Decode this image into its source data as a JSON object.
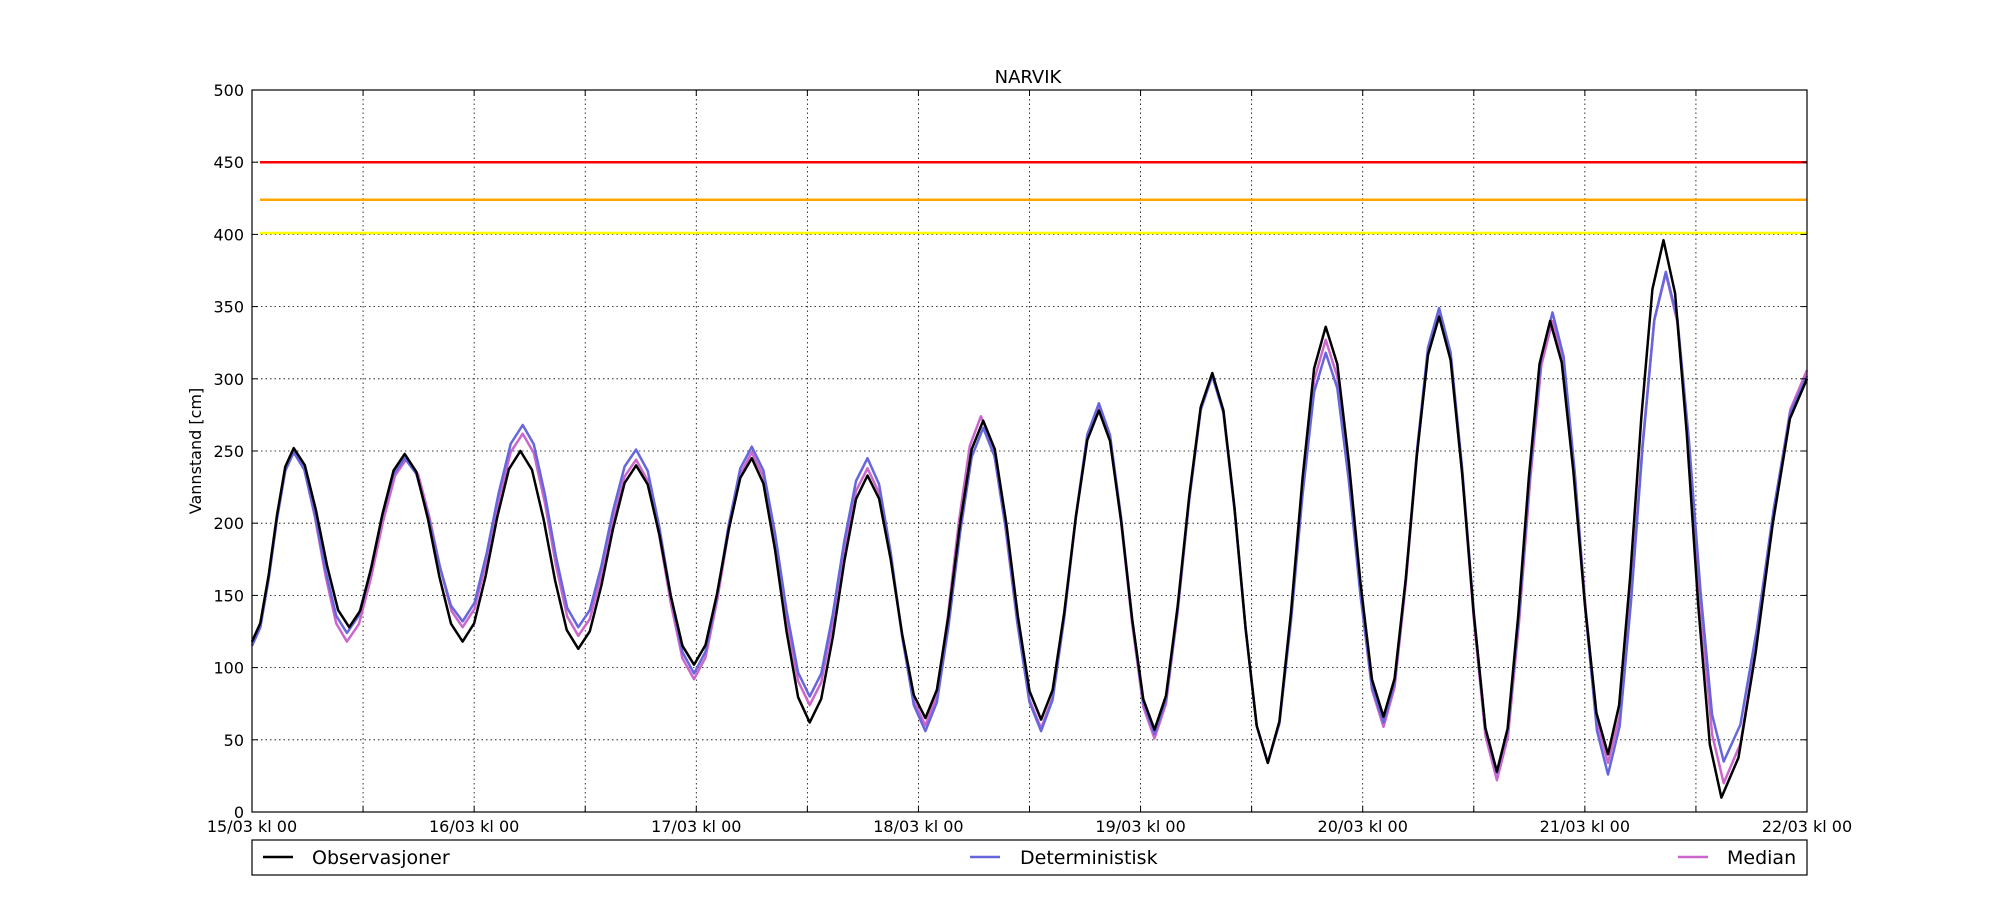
{
  "chart_data": {
    "type": "line",
    "title": "NARVIK",
    "ylabel": "Vannstand [cm]",
    "xlabel": "",
    "ylim": [
      0,
      500
    ],
    "xlim": [
      "15/03 kl 00",
      "22/03 kl 00"
    ],
    "y_ticks": [
      "0",
      "50",
      "100",
      "150",
      "200",
      "250",
      "300",
      "350",
      "400",
      "450",
      "500"
    ],
    "x_tick_labels": [
      "15/03 kl 00",
      "16/03 kl 00",
      "17/03 kl 00",
      "18/03 kl 00",
      "19/03 kl 00",
      "20/03 kl 00",
      "21/03 kl 00",
      "22/03 kl 00"
    ],
    "grid": true,
    "legend_placement": "bottom",
    "thresholds": [
      {
        "value": 450,
        "color": "#ff0000"
      },
      {
        "value": 424,
        "color": "#ffa500"
      },
      {
        "value": 401,
        "color": "#ffff00"
      }
    ],
    "series": [
      {
        "name": "Observasjoner",
        "color": "#000000",
        "extrema": [
          [
            "15/03 00:00",
            118
          ],
          [
            "15/03 04:30",
            252
          ],
          [
            "15/03 10:30",
            128
          ],
          [
            "15/03 16:30",
            248
          ],
          [
            "15/03 22:45",
            118
          ],
          [
            "16/03 05:00",
            250
          ],
          [
            "16/03 11:15",
            113
          ],
          [
            "16/03 17:30",
            240
          ],
          [
            "16/03 23:45",
            102
          ],
          [
            "17/03 06:00",
            245
          ],
          [
            "17/03 12:15",
            62
          ],
          [
            "17/03 18:30",
            233
          ],
          [
            "18/03 00:45",
            65
          ],
          [
            "18/03 07:00",
            271
          ],
          [
            "18/03 13:15",
            64
          ],
          [
            "18/03 19:30",
            278
          ],
          [
            "19/03 01:30",
            57
          ],
          [
            "19/03 07:45",
            304
          ],
          [
            "19/03 13:45",
            34
          ],
          [
            "19/03 20:00",
            336
          ],
          [
            "20/03 02:15",
            66
          ],
          [
            "20/03 08:15",
            343
          ],
          [
            "20/03 14:30",
            28
          ],
          [
            "20/03 20:15",
            340
          ],
          [
            "21/03 02:30",
            40
          ],
          [
            "21/03 08:30",
            396
          ],
          [
            "21/03 14:45",
            10
          ],
          [
            "22/03 00:00",
            300
          ]
        ]
      },
      {
        "name": "Deterministisk",
        "color": "#6666dd",
        "extrema": [
          [
            "15/03 00:00",
            115
          ],
          [
            "15/03 04:30",
            249
          ],
          [
            "15/03 10:15",
            124
          ],
          [
            "15/03 16:30",
            245
          ],
          [
            "15/03 22:45",
            132
          ],
          [
            "16/03 05:15",
            268
          ],
          [
            "16/03 11:15",
            128
          ],
          [
            "16/03 17:30",
            251
          ],
          [
            "16/03 23:45",
            96
          ],
          [
            "17/03 06:00",
            253
          ],
          [
            "17/03 12:15",
            80
          ],
          [
            "17/03 18:30",
            245
          ],
          [
            "18/03 00:45",
            56
          ],
          [
            "18/03 07:00",
            266
          ],
          [
            "18/03 13:15",
            56
          ],
          [
            "18/03 19:30",
            283
          ],
          [
            "19/03 01:30",
            54
          ],
          [
            "19/03 07:45",
            302
          ],
          [
            "19/03 13:45",
            34
          ],
          [
            "19/03 20:00",
            318
          ],
          [
            "20/03 02:15",
            62
          ],
          [
            "20/03 08:15",
            349
          ],
          [
            "20/03 14:30",
            27
          ],
          [
            "20/03 20:30",
            346
          ],
          [
            "21/03 02:30",
            26
          ],
          [
            "21/03 08:45",
            374
          ],
          [
            "21/03 15:00",
            35
          ],
          [
            "22/03 00:00",
            302
          ]
        ]
      },
      {
        "name": "Median",
        "color": "#cc66cc",
        "extrema": [
          [
            "15/03 00:00",
            117
          ],
          [
            "15/03 04:30",
            250
          ],
          [
            "15/03 10:15",
            118
          ],
          [
            "15/03 16:45",
            245
          ],
          [
            "15/03 22:45",
            128
          ],
          [
            "16/03 05:15",
            262
          ],
          [
            "16/03 11:15",
            122
          ],
          [
            "16/03 17:30",
            244
          ],
          [
            "16/03 23:45",
            92
          ],
          [
            "17/03 06:00",
            249
          ],
          [
            "17/03 12:15",
            74
          ],
          [
            "17/03 18:30",
            238
          ],
          [
            "18/03 00:45",
            60
          ],
          [
            "18/03 06:45",
            274
          ],
          [
            "18/03 13:15",
            58
          ],
          [
            "18/03 19:30",
            280
          ],
          [
            "19/03 01:30",
            51
          ],
          [
            "19/03 07:45",
            303
          ],
          [
            "19/03 13:45",
            34
          ],
          [
            "19/03 20:00",
            327
          ],
          [
            "20/03 02:15",
            59
          ],
          [
            "20/03 08:15",
            346
          ],
          [
            "20/03 14:30",
            22
          ],
          [
            "20/03 20:30",
            340
          ],
          [
            "21/03 02:30",
            34
          ],
          [
            "21/03 08:45",
            373
          ],
          [
            "21/03 15:00",
            20
          ],
          [
            "22/03 00:00",
            306
          ]
        ]
      }
    ]
  }
}
